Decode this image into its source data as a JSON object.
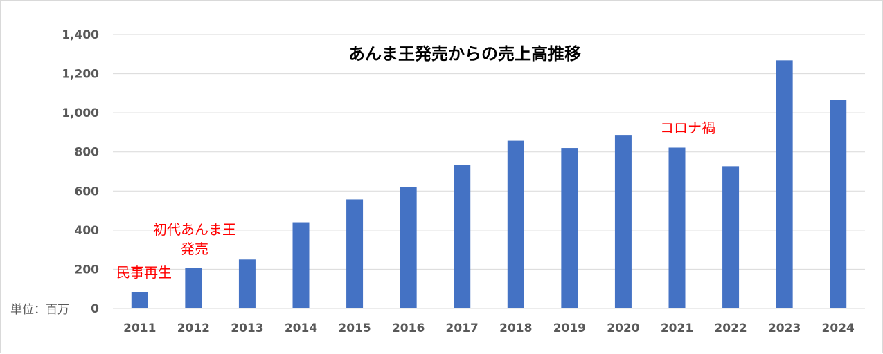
{
  "chart_data": {
    "type": "bar",
    "title": "あんま王発売からの売上高推移",
    "unit_label": "単位：百万",
    "categories": [
      "2011",
      "2012",
      "2013",
      "2014",
      "2015",
      "2016",
      "2017",
      "2018",
      "2019",
      "2020",
      "2021",
      "2022",
      "2023",
      "2024"
    ],
    "values": [
      83,
      207,
      250,
      440,
      557,
      622,
      732,
      857,
      820,
      887,
      822,
      727,
      1268,
      1067
    ],
    "ylim": [
      0,
      1400
    ],
    "yticks": [
      0,
      200,
      400,
      600,
      800,
      1000,
      1200,
      1400
    ],
    "ytick_labels": [
      "0",
      "200",
      "400",
      "600",
      "800",
      "1,000",
      "1,200",
      "1,400"
    ],
    "grid": true,
    "bar_color": "#4472c4",
    "annotations": [
      {
        "text": "民事再生",
        "category": "2011",
        "color": "#ff0000"
      },
      {
        "text": "初代あんま王",
        "category": "2012",
        "color": "#ff0000"
      },
      {
        "text": "発売",
        "category": "2012",
        "color": "#ff0000"
      },
      {
        "text": "コロナ禍",
        "category": "2021",
        "color": "#ff0000"
      }
    ]
  }
}
